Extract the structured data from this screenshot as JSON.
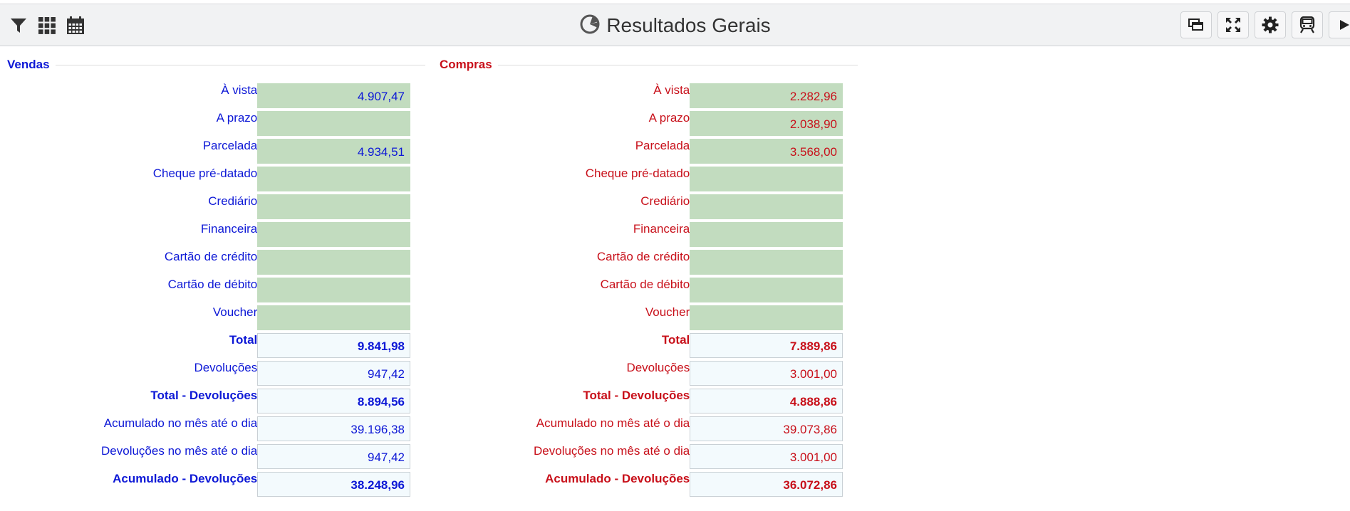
{
  "header": {
    "title": "Resultados Gerais",
    "left_icons": [
      "filter-icon",
      "grid-icon",
      "calendar-icon"
    ],
    "right_icons": [
      "windows-icon",
      "fullscreen-icon",
      "gear-icon",
      "train-icon",
      "play-icon"
    ]
  },
  "colors": {
    "vendas": "#0d18d6",
    "compras": "#c8101a",
    "cell_green": "#c2dcbf",
    "cell_light": "#f3fafd"
  },
  "vendas": {
    "title": "Vendas",
    "rows": [
      {
        "label": "À vista",
        "value": "4.907,47"
      },
      {
        "label": "A prazo",
        "value": ""
      },
      {
        "label": "Parcelada",
        "value": "4.934,51"
      },
      {
        "label": "Cheque pré-datado",
        "value": ""
      },
      {
        "label": "Crediário",
        "value": ""
      },
      {
        "label": "Financeira",
        "value": ""
      },
      {
        "label": "Cartão de crédito",
        "value": ""
      },
      {
        "label": "Cartão de débito",
        "value": ""
      },
      {
        "label": "Voucher",
        "value": ""
      },
      {
        "label": "Total",
        "value": "9.841,98"
      },
      {
        "label": "Devoluções",
        "value": "947,42"
      },
      {
        "label": "Total - Devoluções",
        "value": "8.894,56"
      },
      {
        "label": "Acumulado no mês até o dia",
        "value": "39.196,38"
      },
      {
        "label": "Devoluções no mês até o dia",
        "value": "947,42"
      },
      {
        "label": "Acumulado - Devoluções",
        "value": "38.248,96"
      }
    ]
  },
  "compras": {
    "title": "Compras",
    "rows": [
      {
        "label": "À vista",
        "value": "2.282,96"
      },
      {
        "label": "A prazo",
        "value": "2.038,90"
      },
      {
        "label": "Parcelada",
        "value": "3.568,00"
      },
      {
        "label": "Cheque pré-datado",
        "value": ""
      },
      {
        "label": "Crediário",
        "value": ""
      },
      {
        "label": "Financeira",
        "value": ""
      },
      {
        "label": "Cartão de crédito",
        "value": ""
      },
      {
        "label": "Cartão de débito",
        "value": ""
      },
      {
        "label": "Voucher",
        "value": ""
      },
      {
        "label": "Total",
        "value": "7.889,86"
      },
      {
        "label": "Devoluções",
        "value": "3.001,00"
      },
      {
        "label": "Total - Devoluções",
        "value": "4.888,86"
      },
      {
        "label": "Acumulado no mês até o dia",
        "value": "39.073,86"
      },
      {
        "label": "Devoluções no mês até o dia",
        "value": "3.001,00"
      },
      {
        "label": "Acumulado - Devoluções",
        "value": "36.072,86"
      }
    ]
  }
}
